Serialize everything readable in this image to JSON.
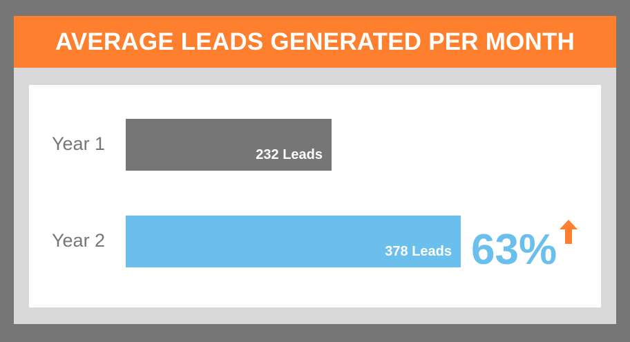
{
  "title": "AVERAGE LEADS GENERATED PER MONTH",
  "colors": {
    "title_bar": "#fe7f2d",
    "year1_bar": "#767676",
    "year2_bar": "#6bbfed",
    "change_text": "#6bbfed",
    "arrow": "#fe7f2d"
  },
  "change": {
    "value": "63%",
    "direction_icon": "arrow-up-icon"
  },
  "chart_data": {
    "type": "bar",
    "orientation": "horizontal",
    "title": "AVERAGE LEADS GENERATED PER MONTH",
    "categories": [
      "Year 1",
      "Year 2"
    ],
    "values": [
      232,
      378
    ],
    "data_labels": [
      "232 Leads",
      "378 Leads"
    ],
    "annotation": "63%",
    "xlim": [
      0,
      378
    ],
    "grid": false,
    "legend": "none"
  }
}
